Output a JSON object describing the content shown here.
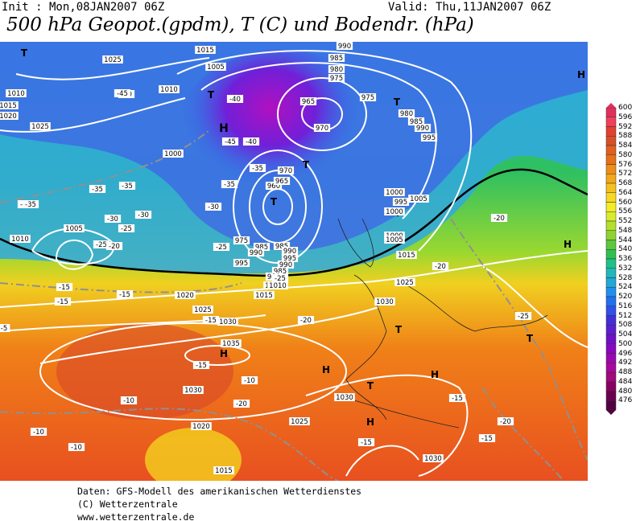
{
  "header": {
    "init": "Init : Mon,08JAN2007 06Z",
    "valid": "Valid: Thu,11JAN2007 06Z",
    "title": "500 hPa Geopot.(gpdm), T (C) und Bodendr. (hPa)"
  },
  "footer": {
    "line1": "Daten: GFS-Modell des amerikanischen Wetterdienstes",
    "line2": "(C) Wetterzentrale",
    "line3": "www.wetterzentrale.de"
  },
  "legend": {
    "levels": [
      "600",
      "596",
      "592",
      "588",
      "584",
      "580",
      "576",
      "572",
      "568",
      "564",
      "560",
      "556",
      "552",
      "548",
      "544",
      "540",
      "536",
      "532",
      "528",
      "524",
      "520",
      "516",
      "512",
      "508",
      "504",
      "500",
      "496",
      "492",
      "488",
      "484",
      "480",
      "476"
    ],
    "colors": [
      "#e0305a",
      "#f0405a",
      "#e24030",
      "#d85028",
      "#e06020",
      "#e87018",
      "#f08c18",
      "#f2a81a",
      "#f4c21e",
      "#f8d822",
      "#f4ec28",
      "#d8ec2c",
      "#b4e02c",
      "#8ed430",
      "#5cc83a",
      "#30c050",
      "#20c08a",
      "#20b8b8",
      "#20a8d8",
      "#2090ec",
      "#2070f0",
      "#3050e8",
      "#4030d8",
      "#5a20d0",
      "#7010c8",
      "#8808c0",
      "#9a08b0",
      "#a8089c",
      "#a0087c",
      "#880060",
      "#6a0050",
      "#520040"
    ]
  },
  "map": {
    "pressure_labels": [
      "1025",
      "1015",
      "1010",
      "1010",
      "1015",
      "1020",
      "1025",
      "1005",
      "1000",
      "1005",
      "1010",
      "990",
      "985",
      "980",
      "975",
      "965",
      "975",
      "970",
      "960",
      "965",
      "970",
      "980",
      "985",
      "990",
      "995",
      "1000",
      "1005",
      "1000",
      "995",
      "985",
      "990",
      "995",
      "990",
      "985",
      "980",
      "975",
      "985",
      "990",
      "995",
      "1000",
      "1005",
      "1015",
      "1010",
      "1015",
      "1020",
      "1025",
      "1030",
      "1035",
      "1030",
      "1025",
      "1020",
      "1015",
      "1030",
      "1030",
      "1025",
      "1010",
      "1030"
    ],
    "temperature_labels": [
      "-35",
      "-35",
      "-35",
      "-35",
      "-30",
      "-30",
      "-25",
      "-25",
      "-20",
      "-15",
      "-15",
      "-15",
      "-10",
      "-10",
      "-40",
      "-45",
      "-45",
      "-40",
      "-40",
      "-35",
      "-35",
      "-30",
      "-25",
      "-25",
      "-20",
      "-15",
      "-10",
      "-20",
      "-15",
      "-10",
      "-5",
      "-25",
      "-20",
      "-20",
      "-15",
      "-20",
      "-15",
      "-15"
    ],
    "highs": [
      "H",
      "H",
      "H",
      "H",
      "H",
      "H"
    ],
    "lows": [
      "T",
      "T",
      "T",
      "T",
      "T",
      "T",
      "T",
      "T",
      "T"
    ]
  }
}
